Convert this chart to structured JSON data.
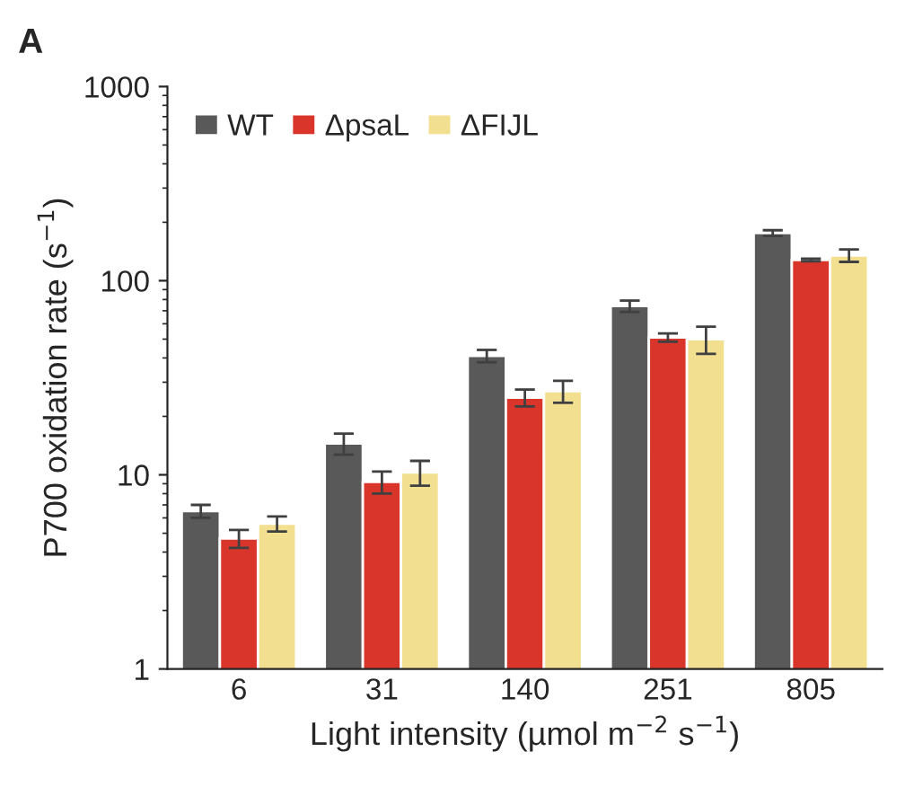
{
  "chart_data": {
    "type": "bar",
    "ylabel": "P700 oxidation rate (s$^{−1}$)",
    "xlabel": "Light intensity (µmol m$^{−2}$ s$^{−1}$)",
    "annotations": [
      "A"
    ],
    "categories": [
      "6",
      "31",
      "140",
      "251",
      "805"
    ],
    "series": [
      {
        "name": "WT",
        "color": "#595959",
        "values": [
          6.5,
          14.5,
          41,
          74,
          176
        ],
        "errors": [
          0.5,
          1.8,
          3,
          5,
          6
        ]
      },
      {
        "name": "ΔpsaL",
        "color": "#d9352b",
        "values": [
          4.7,
          9.2,
          25,
          51,
          128
        ],
        "errors": [
          0.5,
          1.2,
          2.5,
          2.5,
          2
        ]
      },
      {
        "name": "ΔFIJL",
        "color": "#f2df8f",
        "values": [
          5.6,
          10.3,
          27,
          50,
          135
        ],
        "errors": [
          0.5,
          1.5,
          3.5,
          8,
          10
        ]
      }
    ],
    "log": true,
    "ylim": [
      1,
      1000
    ],
    "yticks": [
      1,
      10,
      100,
      1000
    ],
    "grid": false,
    "legend": "top left"
  }
}
